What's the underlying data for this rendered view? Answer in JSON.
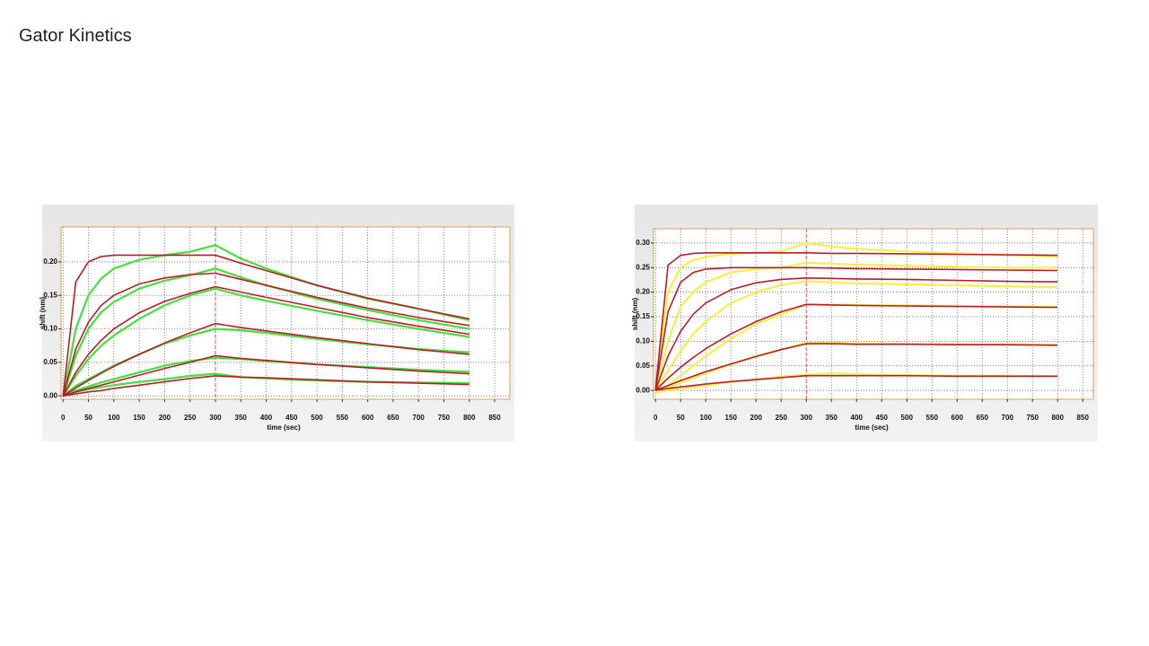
{
  "title": "Gator Kinetics",
  "chart_data": [
    {
      "type": "line",
      "xlabel": "time (sec)",
      "ylabel": "shift (nm)",
      "x": [
        0,
        25,
        50,
        75,
        100,
        150,
        200,
        250,
        300,
        350,
        400,
        500,
        600,
        700,
        800
      ],
      "xlim": [
        -4,
        880
      ],
      "ylim": [
        -0.005,
        0.252
      ],
      "xticks": [
        0,
        50,
        100,
        150,
        200,
        250,
        300,
        350,
        400,
        450,
        500,
        550,
        600,
        650,
        700,
        750,
        800,
        850
      ],
      "yticks": [
        {
          "value": 0,
          "label": "0.00"
        },
        {
          "value": 0.05,
          "label": "0.05"
        },
        {
          "value": 0.1,
          "label": "0.10"
        },
        {
          "value": 0.15,
          "label": "0.15"
        },
        {
          "value": 0.2,
          "label": "0.20"
        }
      ],
      "grid": true,
      "vline": 300,
      "series": [
        {
          "color": "#44e03c",
          "values": [
            0,
            0.1,
            0.15,
            0.175,
            0.19,
            0.203,
            0.21,
            0.215,
            0.225,
            0.205,
            0.19,
            0.165,
            0.145,
            0.13,
            0.113
          ]
        },
        {
          "color": "#44e03c",
          "values": [
            0,
            0.06,
            0.1,
            0.125,
            0.14,
            0.16,
            0.172,
            0.18,
            0.19,
            0.177,
            0.165,
            0.145,
            0.128,
            0.113,
            0.1
          ]
        },
        {
          "color": "#44e03c",
          "values": [
            0,
            0.03,
            0.055,
            0.075,
            0.09,
            0.115,
            0.135,
            0.15,
            0.16,
            0.15,
            0.142,
            0.127,
            0.113,
            0.1,
            0.088
          ]
        },
        {
          "color": "#44e03c",
          "values": [
            0,
            0.015,
            0.025,
            0.035,
            0.045,
            0.062,
            0.078,
            0.09,
            0.1,
            0.098,
            0.094,
            0.085,
            0.077,
            0.07,
            0.065
          ]
        },
        {
          "color": "#44e03c",
          "values": [
            0,
            0.008,
            0.014,
            0.02,
            0.025,
            0.035,
            0.045,
            0.052,
            0.057,
            0.055,
            0.052,
            0.047,
            0.043,
            0.039,
            0.036
          ]
        },
        {
          "color": "#44e03c",
          "values": [
            0,
            0.006,
            0.01,
            0.013,
            0.016,
            0.021,
            0.025,
            0.03,
            0.033,
            0.028,
            0.026,
            0.023,
            0.021,
            0.02,
            0.019
          ]
        },
        {
          "color": "#b81c2c",
          "values": [
            0,
            0.17,
            0.2,
            0.208,
            0.21,
            0.21,
            0.21,
            0.21,
            0.21,
            0.198,
            0.187,
            0.165,
            0.146,
            0.13,
            0.115
          ]
        },
        {
          "color": "#b81c2c",
          "values": [
            0,
            0.07,
            0.11,
            0.135,
            0.15,
            0.167,
            0.176,
            0.181,
            0.183,
            0.174,
            0.165,
            0.147,
            0.131,
            0.117,
            0.105
          ]
        },
        {
          "color": "#b81c2c",
          "values": [
            0,
            0.035,
            0.062,
            0.083,
            0.1,
            0.124,
            0.141,
            0.153,
            0.163,
            0.155,
            0.147,
            0.132,
            0.117,
            0.104,
            0.092
          ]
        },
        {
          "color": "#b81c2c",
          "values": [
            0,
            0.012,
            0.023,
            0.034,
            0.044,
            0.062,
            0.079,
            0.094,
            0.108,
            0.102,
            0.097,
            0.087,
            0.078,
            0.069,
            0.062
          ]
        },
        {
          "color": "#b81c2c",
          "values": [
            0,
            0.006,
            0.011,
            0.016,
            0.021,
            0.031,
            0.041,
            0.05,
            0.06,
            0.056,
            0.053,
            0.047,
            0.042,
            0.037,
            0.033
          ]
        },
        {
          "color": "#b81c2c",
          "values": [
            0,
            0.003,
            0.006,
            0.008,
            0.011,
            0.016,
            0.021,
            0.026,
            0.03,
            0.028,
            0.027,
            0.024,
            0.021,
            0.019,
            0.017
          ]
        }
      ]
    },
    {
      "type": "line",
      "xlabel": "time (sec)",
      "ylabel": "shift (nm)",
      "x": [
        0,
        25,
        50,
        75,
        100,
        150,
        200,
        250,
        300,
        350,
        400,
        500,
        600,
        700,
        800
      ],
      "xlim": [
        -4,
        871
      ],
      "ylim": [
        -0.018,
        0.329
      ],
      "xticks": [
        0,
        50,
        100,
        150,
        200,
        250,
        300,
        350,
        400,
        450,
        500,
        550,
        600,
        650,
        700,
        750,
        800,
        850
      ],
      "yticks": [
        {
          "value": 0,
          "label": "0.00"
        },
        {
          "value": 0.05,
          "label": "0.05"
        },
        {
          "value": 0.1,
          "label": "0.10"
        },
        {
          "value": 0.15,
          "label": "0.15"
        },
        {
          "value": 0.2,
          "label": "0.20"
        },
        {
          "value": 0.25,
          "label": "0.25"
        },
        {
          "value": 0.3,
          "label": "0.30"
        }
      ],
      "grid": true,
      "vline": 300,
      "series": [
        {
          "color": "#f4f04a",
          "values": [
            0,
            0.2,
            0.25,
            0.265,
            0.272,
            0.278,
            0.28,
            0.283,
            0.3,
            0.293,
            0.288,
            0.283,
            0.279,
            0.276,
            0.272
          ]
        },
        {
          "color": "#f4f04a",
          "values": [
            0,
            0.1,
            0.17,
            0.2,
            0.22,
            0.24,
            0.247,
            0.25,
            0.26,
            0.258,
            0.256,
            0.254,
            0.252,
            0.25,
            0.25
          ]
        },
        {
          "color": "#f4f04a",
          "values": [
            0,
            0.04,
            0.08,
            0.115,
            0.14,
            0.178,
            0.2,
            0.215,
            0.222,
            0.22,
            0.218,
            0.216,
            0.214,
            0.212,
            0.21
          ]
        },
        {
          "color": "#f4f04a",
          "values": [
            0,
            0.01,
            0.03,
            0.05,
            0.07,
            0.105,
            0.135,
            0.155,
            0.175,
            0.175,
            0.174,
            0.173,
            0.172,
            0.171,
            0.17
          ]
        },
        {
          "color": "#f4f04a",
          "values": [
            0,
            0.005,
            0.015,
            0.025,
            0.035,
            0.053,
            0.07,
            0.083,
            0.097,
            0.097,
            0.096,
            0.095,
            0.094,
            0.093,
            0.093
          ]
        },
        {
          "color": "#f4f04a",
          "values": [
            -0.005,
            0,
            0.003,
            0.007,
            0.01,
            0.017,
            0.022,
            0.028,
            0.032,
            0.035,
            0.033,
            0.031,
            0.03,
            0.03,
            0.029
          ]
        },
        {
          "color": "#b81c2c",
          "values": [
            0,
            0.255,
            0.275,
            0.279,
            0.28,
            0.28,
            0.28,
            0.28,
            0.28,
            0.279,
            0.279,
            0.278,
            0.277,
            0.276,
            0.275
          ]
        },
        {
          "color": "#b81c2c",
          "values": [
            0,
            0.16,
            0.22,
            0.24,
            0.247,
            0.25,
            0.25,
            0.25,
            0.25,
            0.249,
            0.248,
            0.247,
            0.246,
            0.245,
            0.244
          ]
        },
        {
          "color": "#b81c2c",
          "values": [
            0,
            0.07,
            0.12,
            0.155,
            0.178,
            0.205,
            0.219,
            0.226,
            0.229,
            0.228,
            0.227,
            0.226,
            0.224,
            0.222,
            0.221
          ]
        },
        {
          "color": "#b81c2c",
          "values": [
            0,
            0.025,
            0.047,
            0.067,
            0.085,
            0.115,
            0.14,
            0.16,
            0.175,
            0.174,
            0.173,
            0.172,
            0.171,
            0.17,
            0.169
          ]
        },
        {
          "color": "#b81c2c",
          "values": [
            0,
            0.01,
            0.02,
            0.029,
            0.038,
            0.054,
            0.069,
            0.083,
            0.095,
            0.095,
            0.094,
            0.094,
            0.093,
            0.093,
            0.092
          ]
        },
        {
          "color": "#b81c2c",
          "values": [
            0,
            0.004,
            0.007,
            0.01,
            0.013,
            0.018,
            0.022,
            0.026,
            0.03,
            0.03,
            0.03,
            0.03,
            0.029,
            0.029,
            0.029
          ]
        }
      ]
    }
  ]
}
